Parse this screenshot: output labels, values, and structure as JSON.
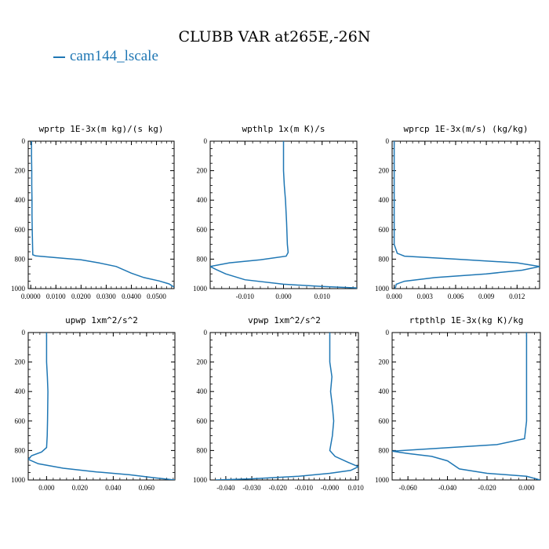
{
  "title": "CLUBB VAR at265E,-26N",
  "legend": {
    "label": "cam144_lscale",
    "color": "#1f77b4"
  },
  "chart_data": [
    {
      "type": "line",
      "title": "wprtp  1E-3x(m kg)/(s kg)",
      "xlim": [
        -0.001,
        0.057
      ],
      "ylim": [
        1000,
        0
      ],
      "xticks": [
        0.0,
        0.01,
        0.02,
        0.03,
        0.04,
        0.05
      ],
      "xtick_labels": [
        "0.0000",
        "0.0100",
        "0.0200",
        "0.0300",
        "0.0400",
        "0.0500"
      ],
      "yticks": [
        0,
        200,
        400,
        600,
        800,
        1000
      ],
      "ytick_labels": [
        "0",
        "200",
        "400",
        "600",
        "800",
        "1000"
      ],
      "series": [
        {
          "name": "cam144_lscale",
          "x": [
            0.0003,
            0.0003,
            0.0004,
            0.0004,
            0.0005,
            0.0005,
            0.0006,
            0.0007,
            0.0008,
            0.002,
            0.01,
            0.02,
            0.027,
            0.034,
            0.04,
            0.045,
            0.051,
            0.055,
            0.057
          ],
          "y": [
            0,
            100,
            200,
            300,
            400,
            500,
            600,
            700,
            770,
            778,
            790,
            805,
            825,
            850,
            895,
            925,
            948,
            968,
            990
          ]
        }
      ]
    },
    {
      "type": "line",
      "title": "wpthlp  1x(m K)/s",
      "xlim": [
        -0.019,
        0.019
      ],
      "ylim": [
        1000,
        0
      ],
      "xticks": [
        -0.01,
        0.0,
        0.01
      ],
      "xtick_labels": [
        "-0.010",
        "0.000",
        "0.010"
      ],
      "yticks": [
        0,
        200,
        400,
        600,
        800,
        1000
      ],
      "ytick_labels": [
        "0",
        "200",
        "400",
        "600",
        "800",
        "1000"
      ],
      "series": [
        {
          "name": "cam144_lscale",
          "x": [
            0.0,
            0.0,
            0.0002,
            0.0005,
            0.0008,
            0.001,
            0.0012,
            0.0007,
            -0.006,
            -0.014,
            -0.019,
            -0.0175,
            -0.015,
            -0.01,
            0.0,
            0.01,
            0.019
          ],
          "y": [
            0,
            200,
            300,
            400,
            550,
            700,
            755,
            780,
            805,
            825,
            850,
            870,
            900,
            940,
            970,
            985,
            995
          ]
        }
      ]
    },
    {
      "type": "line",
      "title": "wprcp  1E-3x(m/s) (kg/kg)",
      "xlim": [
        -0.0002,
        0.0142
      ],
      "ylim": [
        1000,
        0
      ],
      "xticks": [
        0.0,
        0.003,
        0.006,
        0.009,
        0.012
      ],
      "xtick_labels": [
        "0.000",
        "0.003",
        "0.006",
        "0.009",
        "0.012"
      ],
      "yticks": [
        0,
        200,
        400,
        600,
        800,
        1000
      ],
      "ytick_labels": [
        "0",
        "200",
        "400",
        "600",
        "800",
        "1000"
      ],
      "series": [
        {
          "name": "cam144_lscale",
          "x": [
            0.0,
            0.0,
            0.0,
            0.0,
            0.0003,
            0.001,
            0.006,
            0.012,
            0.0142,
            0.0125,
            0.009,
            0.004,
            0.001,
            0.0002,
            0.0001
          ],
          "y": [
            0,
            200,
            400,
            700,
            760,
            780,
            800,
            825,
            850,
            875,
            900,
            925,
            950,
            970,
            1000
          ]
        }
      ]
    },
    {
      "type": "line",
      "title": "upwp  1xm^2/s^2",
      "xlim": [
        -0.011,
        0.077
      ],
      "ylim": [
        1000,
        0
      ],
      "xticks": [
        0.0,
        0.02,
        0.04,
        0.06
      ],
      "xtick_labels": [
        "0.000",
        "0.020",
        "0.040",
        "0.060"
      ],
      "yticks": [
        0,
        200,
        400,
        600,
        800,
        1000
      ],
      "ytick_labels": [
        "0",
        "200",
        "400",
        "600",
        "800",
        "1000"
      ],
      "series": [
        {
          "name": "cam144_lscale",
          "x": [
            0.0,
            0.0,
            0.0005,
            0.0008,
            0.0006,
            0.0004,
            0.0,
            -0.003,
            -0.009,
            -0.011,
            -0.005,
            0.01,
            0.03,
            0.05,
            0.065,
            0.077
          ],
          "y": [
            0,
            200,
            300,
            400,
            600,
            700,
            780,
            810,
            835,
            860,
            890,
            920,
            945,
            965,
            985,
            1000
          ]
        }
      ]
    },
    {
      "type": "line",
      "title": "vpwp  1xm^2/s^2",
      "xlim": [
        -0.046,
        0.011
      ],
      "ylim": [
        1000,
        0
      ],
      "xticks": [
        -0.04,
        -0.03,
        -0.02,
        -0.01,
        0.0,
        0.01
      ],
      "xtick_labels": [
        "-0.040",
        "-0.030",
        "-0.020",
        "-0.010",
        "-0.000",
        "0.010"
      ],
      "yticks": [
        0,
        200,
        400,
        600,
        800,
        1000
      ],
      "ytick_labels": [
        "0",
        "200",
        "400",
        "600",
        "800",
        "1000"
      ],
      "series": [
        {
          "name": "cam144_lscale",
          "x": [
            0.0,
            0.0,
            0.0008,
            0.0003,
            0.001,
            0.0015,
            0.001,
            0.0,
            0.002,
            0.007,
            0.011,
            0.008,
            0.0,
            -0.012,
            -0.03,
            -0.044
          ],
          "y": [
            0,
            200,
            300,
            400,
            500,
            600,
            700,
            800,
            840,
            880,
            910,
            935,
            955,
            975,
            992,
            1000
          ]
        }
      ]
    },
    {
      "type": "line",
      "title": "rtpthlp  1E-3x(kg K)/kg",
      "xlim": [
        -0.068,
        0.007
      ],
      "ylim": [
        1000,
        0
      ],
      "xticks": [
        -0.06,
        -0.04,
        -0.02,
        0.0
      ],
      "xtick_labels": [
        "-0.060",
        "-0.040",
        "-0.020",
        "0.000"
      ],
      "yticks": [
        0,
        200,
        400,
        600,
        800,
        1000
      ],
      "ytick_labels": [
        "0",
        "200",
        "400",
        "600",
        "800",
        "1000"
      ],
      "series": [
        {
          "name": "cam144_lscale",
          "x": [
            0.0,
            0.0,
            0.0,
            0.0,
            -0.001,
            -0.015,
            -0.045,
            -0.068,
            -0.06,
            -0.048,
            -0.04,
            -0.034,
            -0.02,
            0.0,
            0.007
          ],
          "y": [
            0,
            200,
            400,
            600,
            720,
            760,
            785,
            805,
            820,
            840,
            870,
            925,
            955,
            975,
            1000
          ]
        }
      ]
    }
  ]
}
